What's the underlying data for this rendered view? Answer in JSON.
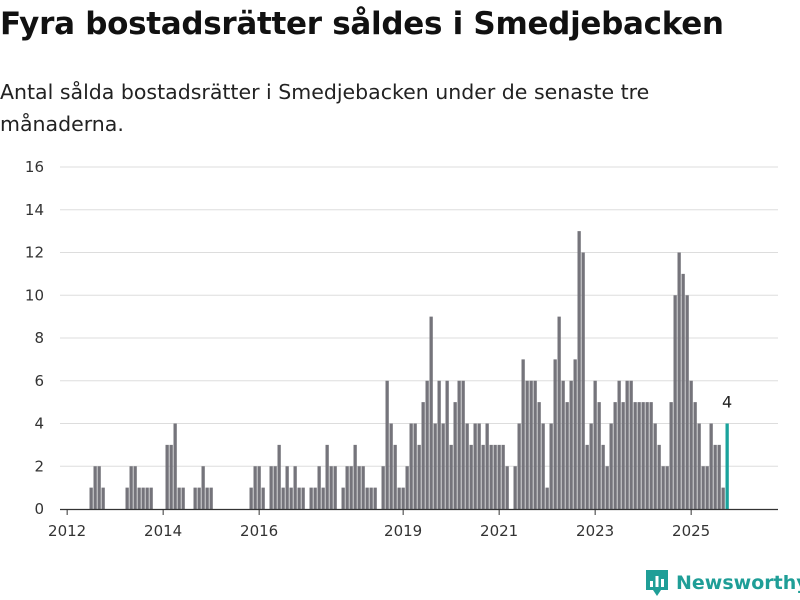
{
  "title": "Fyra bostadsrätter såldes i Smedjebacken",
  "subtitle": "Antal sålda bostadsrätter i Smedjebacken under de senaste tre månaderna.",
  "brand": {
    "name": "Newsworthy",
    "color": "#1f9e97"
  },
  "colors": {
    "bar": "#75747b",
    "highlight": "#1aa39c",
    "grid": "#dddddd",
    "axis": "#333333"
  },
  "chart_data": {
    "type": "bar",
    "title": "Fyra bostadsrätter såldes i Smedjebacken",
    "subtitle": "Antal sålda bostadsrätter i Smedjebacken under de senaste tre månaderna.",
    "xlabel": "",
    "ylabel": "",
    "ylim": [
      0,
      16
    ],
    "yticks": [
      "0",
      "2",
      "4",
      "6",
      "8",
      "10",
      "12",
      "14",
      "16"
    ],
    "xticks": [
      "2012",
      "2014",
      "2016",
      "2019",
      "2021",
      "2023",
      "2025"
    ],
    "grid": true,
    "legend": "none",
    "start_month": "2011-12",
    "end_month": "2025-05",
    "values": [
      0,
      0,
      0,
      0,
      0,
      0,
      0,
      1,
      2,
      2,
      1,
      0,
      0,
      0,
      0,
      0,
      1,
      2,
      2,
      1,
      1,
      1,
      1,
      0,
      0,
      0,
      3,
      3,
      4,
      1,
      1,
      0,
      0,
      1,
      1,
      2,
      1,
      1,
      0,
      0,
      0,
      0,
      0,
      0,
      0,
      0,
      0,
      1,
      2,
      2,
      1,
      0,
      2,
      2,
      3,
      1,
      2,
      1,
      2,
      1,
      1,
      0,
      1,
      1,
      2,
      1,
      3,
      2,
      2,
      0,
      1,
      2,
      2,
      3,
      2,
      2,
      1,
      1,
      1,
      0,
      2,
      6,
      4,
      3,
      1,
      1,
      2,
      4,
      4,
      3,
      5,
      6,
      9,
      4,
      6,
      4,
      6,
      3,
      5,
      6,
      6,
      4,
      3,
      4,
      4,
      3,
      4,
      3,
      3,
      3,
      3,
      2,
      0,
      2,
      4,
      7,
      6,
      6,
      6,
      5,
      4,
      1,
      4,
      7,
      9,
      6,
      5,
      6,
      7,
      13,
      12,
      3,
      4,
      6,
      5,
      3,
      2,
      4,
      5,
      6,
      5,
      6,
      6,
      5,
      5,
      5,
      5,
      5,
      4,
      3,
      2,
      2,
      5,
      10,
      12,
      11,
      10,
      6,
      5,
      4,
      2,
      2,
      4,
      3,
      3,
      1,
      4
    ],
    "highlight_last": true,
    "annotations": [
      {
        "label": "4",
        "target": "last_bar"
      }
    ]
  }
}
